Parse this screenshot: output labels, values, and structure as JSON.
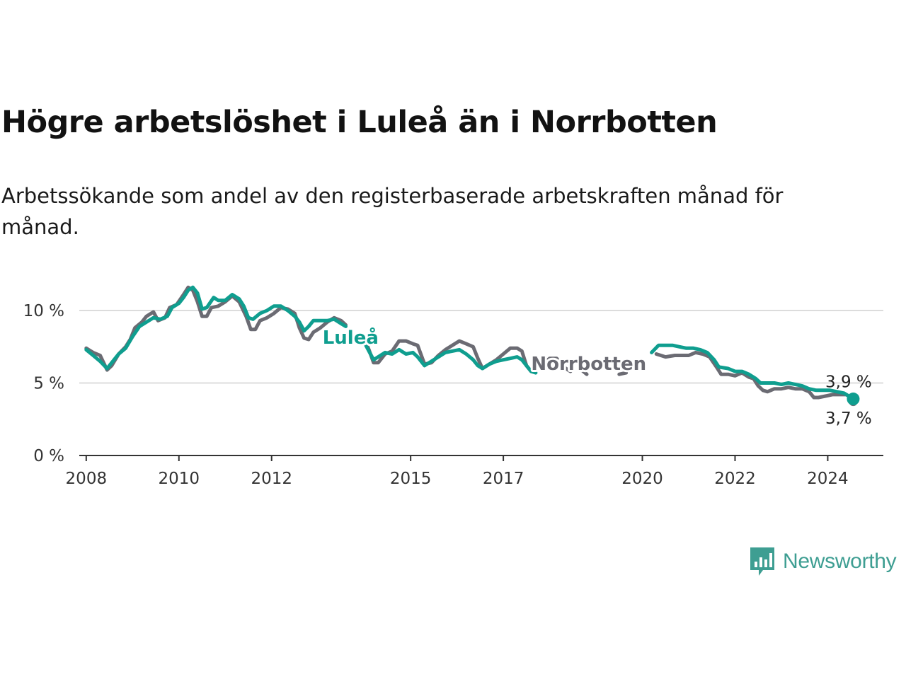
{
  "header": {
    "title": "Högre arbetslöshet i Luleå än i Norrbotten",
    "subtitle": "Arbetssökande som andel av den registerbaserade arbetskraften månad för månad."
  },
  "colors": {
    "lulea": "#0f9e8f",
    "norrbotten": "#6b6b73",
    "grid": "#dcdcdc",
    "axis": "#333333",
    "brand": "#3e9e92"
  },
  "brand": {
    "name": "Newsworthy",
    "icon": "newsworthy-logo-icon"
  },
  "chart_data": {
    "type": "line",
    "title": "Högre arbetslöshet i Luleå än i Norrbotten",
    "xlabel": "",
    "ylabel": "",
    "xlim": [
      2007.85,
      2025.2
    ],
    "ylim": [
      0,
      12
    ],
    "y_ticks": [
      {
        "value": 0,
        "label": "0 %"
      },
      {
        "value": 5,
        "label": "5 %"
      },
      {
        "value": 10,
        "label": "10 %"
      }
    ],
    "x_ticks": [
      {
        "value": 2008,
        "label": "2008"
      },
      {
        "value": 2010,
        "label": "2010"
      },
      {
        "value": 2012,
        "label": "2012"
      },
      {
        "value": 2015,
        "label": "2015"
      },
      {
        "value": 2017,
        "label": "2017"
      },
      {
        "value": 2020,
        "label": "2020"
      },
      {
        "value": 2022,
        "label": "2022"
      },
      {
        "value": 2024,
        "label": "2024"
      }
    ],
    "series": [
      {
        "name": "Norrbotten",
        "label": "Norrbotten",
        "end_label": "3,7 %",
        "segments": [
          [
            [
              2008.0,
              7.4
            ],
            [
              2008.15,
              7.1
            ],
            [
              2008.3,
              6.9
            ],
            [
              2008.45,
              5.9
            ],
            [
              2008.55,
              6.2
            ],
            [
              2008.7,
              7.0
            ],
            [
              2008.85,
              7.5
            ],
            [
              2008.95,
              8.0
            ],
            [
              2009.05,
              8.8
            ],
            [
              2009.2,
              9.2
            ],
            [
              2009.3,
              9.6
            ],
            [
              2009.45,
              9.9
            ],
            [
              2009.55,
              9.3
            ],
            [
              2009.7,
              9.5
            ],
            [
              2009.8,
              10.2
            ],
            [
              2009.95,
              10.4
            ],
            [
              2010.1,
              11.1
            ],
            [
              2010.2,
              11.6
            ],
            [
              2010.3,
              11.4
            ],
            [
              2010.4,
              10.6
            ],
            [
              2010.5,
              9.6
            ],
            [
              2010.6,
              9.6
            ],
            [
              2010.7,
              10.2
            ],
            [
              2010.85,
              10.3
            ],
            [
              2011.0,
              10.6
            ],
            [
              2011.15,
              11.0
            ],
            [
              2011.3,
              10.6
            ],
            [
              2011.45,
              9.6
            ],
            [
              2011.55,
              8.7
            ],
            [
              2011.65,
              8.7
            ],
            [
              2011.75,
              9.3
            ],
            [
              2011.9,
              9.5
            ],
            [
              2012.05,
              9.8
            ],
            [
              2012.2,
              10.2
            ],
            [
              2012.35,
              10.1
            ],
            [
              2012.5,
              9.8
            ],
            [
              2012.6,
              8.8
            ],
            [
              2012.7,
              8.1
            ],
            [
              2012.8,
              8.0
            ],
            [
              2012.9,
              8.5
            ],
            [
              2013.05,
              8.8
            ],
            [
              2013.2,
              9.2
            ],
            [
              2013.35,
              9.5
            ],
            [
              2013.5,
              9.3
            ],
            [
              2013.6,
              9.0
            ]
          ],
          [
            [
              2014.0,
              8.1
            ],
            [
              2014.1,
              7.3
            ],
            [
              2014.2,
              6.4
            ],
            [
              2014.3,
              6.4
            ],
            [
              2014.45,
              7.0
            ],
            [
              2014.6,
              7.2
            ],
            [
              2014.75,
              7.9
            ],
            [
              2014.9,
              7.9
            ],
            [
              2015.05,
              7.7
            ],
            [
              2015.15,
              7.6
            ],
            [
              2015.3,
              6.3
            ],
            [
              2015.45,
              6.4
            ],
            [
              2015.6,
              6.9
            ],
            [
              2015.75,
              7.3
            ],
            [
              2015.9,
              7.6
            ],
            [
              2016.05,
              7.9
            ],
            [
              2016.2,
              7.7
            ],
            [
              2016.35,
              7.5
            ],
            [
              2016.45,
              6.7
            ],
            [
              2016.55,
              6.0
            ],
            [
              2016.7,
              6.3
            ],
            [
              2016.85,
              6.6
            ],
            [
              2017.0,
              7.0
            ],
            [
              2017.15,
              7.4
            ],
            [
              2017.3,
              7.4
            ],
            [
              2017.4,
              7.2
            ],
            [
              2017.5,
              6.2
            ],
            [
              2017.6,
              5.8
            ]
          ],
          [
            [
              2017.85,
              6.3
            ],
            [
              2018.0,
              6.7
            ],
            [
              2018.15,
              6.7
            ],
            [
              2018.3,
              6.1
            ],
            [
              2018.45,
              5.8
            ]
          ],
          [
            [
              2018.65,
              6.0
            ],
            [
              2018.8,
              5.6
            ]
          ],
          [
            [
              2019.5,
              5.6
            ],
            [
              2019.65,
              5.7
            ]
          ],
          [
            [
              2020.3,
              7.0
            ],
            [
              2020.5,
              6.8
            ],
            [
              2020.7,
              6.9
            ],
            [
              2020.85,
              6.9
            ],
            [
              2021.0,
              6.9
            ],
            [
              2021.15,
              7.1
            ],
            [
              2021.3,
              7.0
            ],
            [
              2021.45,
              6.8
            ],
            [
              2021.6,
              6.1
            ],
            [
              2021.7,
              5.6
            ],
            [
              2021.85,
              5.6
            ],
            [
              2022.0,
              5.5
            ],
            [
              2022.15,
              5.7
            ],
            [
              2022.3,
              5.4
            ],
            [
              2022.4,
              5.3
            ],
            [
              2022.5,
              4.8
            ],
            [
              2022.6,
              4.5
            ],
            [
              2022.7,
              4.4
            ],
            [
              2022.85,
              4.6
            ],
            [
              2023.0,
              4.6
            ],
            [
              2023.15,
              4.7
            ],
            [
              2023.3,
              4.6
            ],
            [
              2023.45,
              4.6
            ],
            [
              2023.6,
              4.4
            ],
            [
              2023.7,
              4.0
            ],
            [
              2023.8,
              4.0
            ],
            [
              2023.95,
              4.1
            ],
            [
              2024.1,
              4.2
            ],
            [
              2024.25,
              4.2
            ],
            [
              2024.4,
              4.2
            ],
            [
              2024.5,
              4.0
            ],
            [
              2024.55,
              3.7
            ]
          ]
        ]
      },
      {
        "name": "Luleå",
        "label": "Luleå",
        "end_label": "3,9 %",
        "segments": [
          [
            [
              2008.0,
              7.3
            ],
            [
              2008.15,
              6.9
            ],
            [
              2008.3,
              6.5
            ],
            [
              2008.45,
              6.0
            ],
            [
              2008.55,
              6.4
            ],
            [
              2008.7,
              7.0
            ],
            [
              2008.85,
              7.4
            ],
            [
              2009.0,
              8.2
            ],
            [
              2009.15,
              8.9
            ],
            [
              2009.3,
              9.2
            ],
            [
              2009.45,
              9.5
            ],
            [
              2009.6,
              9.4
            ],
            [
              2009.75,
              9.6
            ],
            [
              2009.85,
              10.2
            ],
            [
              2010.0,
              10.5
            ],
            [
              2010.1,
              10.9
            ],
            [
              2010.2,
              11.4
            ],
            [
              2010.3,
              11.6
            ],
            [
              2010.4,
              11.2
            ],
            [
              2010.5,
              10.1
            ],
            [
              2010.6,
              10.2
            ],
            [
              2010.75,
              10.9
            ],
            [
              2010.85,
              10.7
            ],
            [
              2011.0,
              10.7
            ],
            [
              2011.15,
              11.1
            ],
            [
              2011.3,
              10.8
            ],
            [
              2011.4,
              10.3
            ],
            [
              2011.5,
              9.5
            ],
            [
              2011.6,
              9.4
            ],
            [
              2011.75,
              9.8
            ],
            [
              2011.9,
              10.0
            ],
            [
              2012.05,
              10.3
            ],
            [
              2012.2,
              10.3
            ],
            [
              2012.35,
              10.0
            ],
            [
              2012.5,
              9.6
            ],
            [
              2012.6,
              9.2
            ],
            [
              2012.7,
              8.6
            ],
            [
              2012.8,
              8.9
            ],
            [
              2012.9,
              9.3
            ],
            [
              2013.05,
              9.3
            ],
            [
              2013.2,
              9.3
            ],
            [
              2013.35,
              9.4
            ],
            [
              2013.5,
              9.1
            ],
            [
              2013.6,
              8.9
            ]
          ],
          [
            [
              2014.0,
              7.8
            ],
            [
              2014.1,
              7.2
            ],
            [
              2014.2,
              6.6
            ],
            [
              2014.3,
              6.8
            ],
            [
              2014.45,
              7.1
            ],
            [
              2014.6,
              7.0
            ],
            [
              2014.75,
              7.3
            ],
            [
              2014.9,
              7.0
            ],
            [
              2015.05,
              7.1
            ],
            [
              2015.15,
              6.8
            ],
            [
              2015.3,
              6.2
            ],
            [
              2015.45,
              6.5
            ],
            [
              2015.6,
              6.8
            ],
            [
              2015.75,
              7.1
            ],
            [
              2015.9,
              7.2
            ],
            [
              2016.05,
              7.3
            ],
            [
              2016.2,
              7.0
            ],
            [
              2016.35,
              6.6
            ],
            [
              2016.45,
              6.2
            ],
            [
              2016.55,
              6.0
            ],
            [
              2016.7,
              6.3
            ],
            [
              2016.85,
              6.5
            ],
            [
              2017.0,
              6.6
            ],
            [
              2017.15,
              6.7
            ],
            [
              2017.3,
              6.8
            ],
            [
              2017.4,
              6.6
            ],
            [
              2017.5,
              6.2
            ],
            [
              2017.6,
              5.8
            ],
            [
              2017.7,
              5.7
            ]
          ],
          [
            [
              2020.2,
              7.1
            ],
            [
              2020.35,
              7.6
            ],
            [
              2020.5,
              7.6
            ],
            [
              2020.65,
              7.6
            ],
            [
              2020.8,
              7.5
            ],
            [
              2020.95,
              7.4
            ],
            [
              2021.1,
              7.4
            ],
            [
              2021.25,
              7.3
            ],
            [
              2021.4,
              7.1
            ],
            [
              2021.55,
              6.6
            ],
            [
              2021.65,
              6.1
            ],
            [
              2021.85,
              6.0
            ],
            [
              2022.0,
              5.8
            ],
            [
              2022.15,
              5.8
            ],
            [
              2022.3,
              5.6
            ],
            [
              2022.45,
              5.3
            ],
            [
              2022.55,
              5.0
            ],
            [
              2022.7,
              5.0
            ],
            [
              2022.85,
              5.0
            ],
            [
              2023.0,
              4.9
            ],
            [
              2023.15,
              5.0
            ],
            [
              2023.3,
              4.9
            ],
            [
              2023.45,
              4.8
            ],
            [
              2023.6,
              4.6
            ],
            [
              2023.75,
              4.5
            ],
            [
              2023.9,
              4.5
            ],
            [
              2024.05,
              4.5
            ],
            [
              2024.2,
              4.4
            ],
            [
              2024.35,
              4.3
            ],
            [
              2024.5,
              4.0
            ],
            [
              2024.55,
              3.9
            ]
          ]
        ]
      }
    ]
  }
}
